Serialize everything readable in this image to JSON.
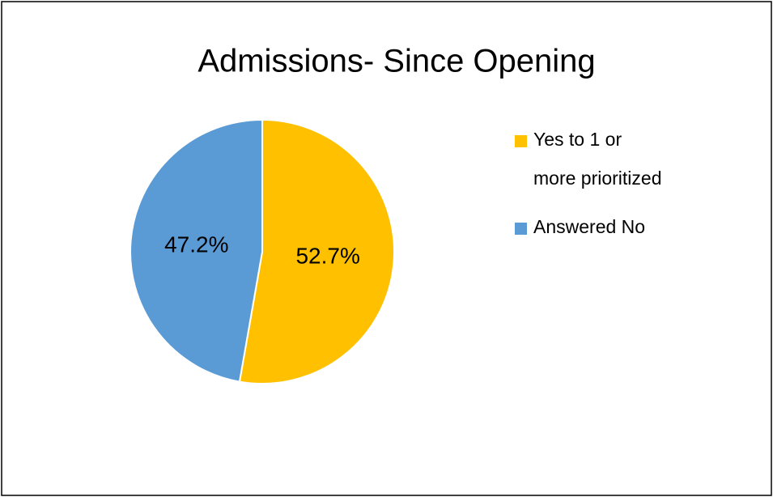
{
  "chart_data": {
    "type": "pie",
    "title": "Admissions- Since Opening",
    "categories": [
      "Yes to 1 or more prioritized",
      "Answered No"
    ],
    "values": [
      52.7,
      47.2
    ],
    "value_labels": [
      "52.7%",
      "47.2%"
    ],
    "colors": [
      "#FFC000",
      "#5B9BD5"
    ],
    "legend": "right"
  }
}
